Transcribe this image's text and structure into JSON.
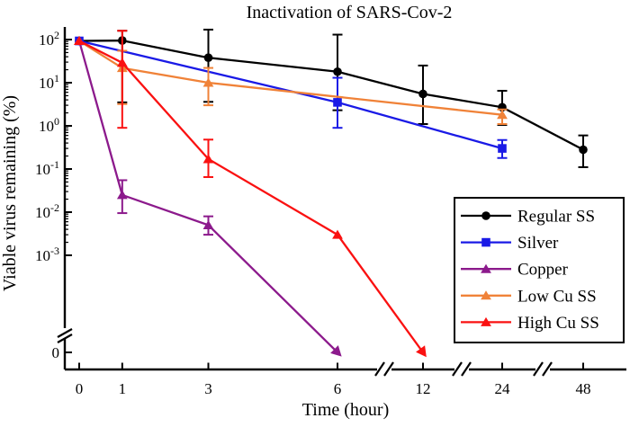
{
  "title": "Inactivation of SARS-Cov-2",
  "axes": {
    "y_label": "Viable virus remaining (%)",
    "x_label": "Time (hour)",
    "y_ticks": [
      {
        "base": "10",
        "exp": "2",
        "v": 100
      },
      {
        "base": "10",
        "exp": "1",
        "v": 10
      },
      {
        "base": "10",
        "exp": "0",
        "v": 1
      },
      {
        "base": "10",
        "exp": "-1",
        "v": 0.1
      },
      {
        "base": "10",
        "exp": "-2",
        "v": 0.01
      },
      {
        "base": "10",
        "exp": "-3",
        "v": 0.001
      },
      {
        "base": "0",
        "exp": "",
        "v": 0
      }
    ],
    "x_ticks": [
      {
        "label": "0",
        "t": 0
      },
      {
        "label": "1",
        "t": 1
      },
      {
        "label": "3",
        "t": 3
      },
      {
        "label": "6",
        "t": 6
      },
      {
        "label": "12",
        "t": 12
      },
      {
        "label": "24",
        "t": 24
      },
      {
        "label": "48",
        "t": 48
      }
    ]
  },
  "legend": {
    "items": [
      {
        "label": "Regular SS",
        "color": "#000000",
        "marker": "circle"
      },
      {
        "label": "Silver",
        "color": "#1a1ae6",
        "marker": "square"
      },
      {
        "label": "Copper",
        "color": "#8c1a8c",
        "marker": "triangle"
      },
      {
        "label": "Low Cu SS",
        "color": "#f08238",
        "marker": "triangle"
      },
      {
        "label": "High Cu SS",
        "color": "#fa1111",
        "marker": "triangle"
      }
    ]
  },
  "chart_data": {
    "type": "line",
    "title": "Inactivation of SARS-Cov-2",
    "xlabel": "Time (hour)",
    "ylabel": "Viable virus remaining (%)",
    "y_scale": "log10 from 100 down to 0.001, plus a broken-axis zero level",
    "x_scale": "linear 0-6 h, then compressed broken segments 6-12, 12-24, 24-48 h",
    "x_breaks": [
      [
        6,
        12
      ],
      [
        12,
        24
      ],
      [
        24,
        48
      ]
    ],
    "x_ticks": [
      0,
      1,
      3,
      6,
      12,
      24,
      48
    ],
    "y_tick_values": [
      100,
      10,
      1,
      0.1,
      0.01,
      0.001,
      0
    ],
    "grid": false,
    "legend_position": "lower right",
    "series": [
      {
        "name": "Regular SS",
        "color": "#000000",
        "marker": "circle",
        "points": [
          {
            "t": 0,
            "v": 93
          },
          {
            "t": 1,
            "v": 95,
            "lo": 3.5,
            "hi": 160
          },
          {
            "t": 3,
            "v": 38,
            "lo": 3.6,
            "hi": 170
          },
          {
            "t": 6,
            "v": 18,
            "lo": 2.3,
            "hi": 130
          },
          {
            "t": 12,
            "v": 5.5,
            "lo": 1.1,
            "hi": 25
          },
          {
            "t": 24,
            "v": 2.7,
            "lo": 1.05,
            "hi": 6.5
          },
          {
            "t": 48,
            "v": 0.28,
            "lo": 0.11,
            "hi": 0.6
          }
        ]
      },
      {
        "name": "Silver",
        "color": "#1a1ae6",
        "marker": "square",
        "points": [
          {
            "t": 0,
            "v": 93
          },
          {
            "t": 6,
            "v": 3.5,
            "lo": 0.9,
            "hi": 13
          },
          {
            "t": 24,
            "v": 0.3,
            "lo": 0.18,
            "hi": 0.47
          }
        ]
      },
      {
        "name": "Copper",
        "color": "#8c1a8c",
        "marker": "triangle",
        "points": [
          {
            "t": 0,
            "v": 93
          },
          {
            "t": 1,
            "v": 0.025,
            "lo": 0.0095,
            "hi": 0.055
          },
          {
            "t": 3,
            "v": 0.005,
            "lo": 0.003,
            "hi": 0.008
          },
          {
            "t": 6,
            "v": 0,
            "arrow": true
          }
        ]
      },
      {
        "name": "Low Cu SS",
        "color": "#f08238",
        "marker": "triangle",
        "points": [
          {
            "t": 0,
            "v": 93
          },
          {
            "t": 1,
            "v": 22,
            "lo": 3.2,
            "hi": 55
          },
          {
            "t": 3,
            "v": 10,
            "lo": 3,
            "hi": 22
          },
          {
            "t": 24,
            "v": 1.8,
            "lo": 1.1,
            "hi": 2.4
          }
        ]
      },
      {
        "name": "High Cu SS",
        "color": "#fa1111",
        "marker": "triangle",
        "points": [
          {
            "t": 0,
            "v": 93
          },
          {
            "t": 1,
            "v": 29,
            "lo": 0.9,
            "hi": 160
          },
          {
            "t": 3,
            "v": 0.17,
            "lo": 0.065,
            "hi": 0.48
          },
          {
            "t": 6,
            "v": 0.003
          },
          {
            "t": 12,
            "v": 0,
            "arrow": true
          }
        ]
      }
    ]
  }
}
